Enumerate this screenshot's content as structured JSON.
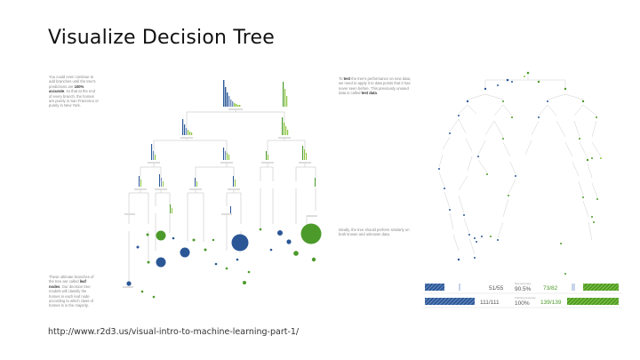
{
  "slide": {
    "title": "Visualize Decision Tree",
    "url": "http://www.r2d3.us/visual-intro-to-machine-learning-part-1/"
  },
  "left_panel": {
    "note_top": {
      "pre": "You could even continue to add branches until the tree's predictions are ",
      "bold": "100% accurate",
      "post": ", so that at the end of every branch, the homes are purely in San Francisco or purely in New York."
    },
    "note_bottom": {
      "pre": "These ultimate branches of the tree are called ",
      "bold": "leaf nodes",
      "post": ". Our decision tree models will classify the homes in each leaf node according to which class of homes is in the majority."
    }
  },
  "right_panel": {
    "note_top": {
      "pre": "To ",
      "bold1": "test",
      "mid": " the tree's performance on new data, we need to apply it to data points that it has never seen before. This previously unused data is called ",
      "bold2": "test data",
      "post": "."
    },
    "note_mid": "Ideally, the tree should perform similarly on both known and unknown data.",
    "stats": {
      "row1": {
        "left": "51/55",
        "center_label": "Test Accuracy",
        "center": "90.5%",
        "right": "73/82"
      },
      "row2": {
        "left": "111/111",
        "center_label": "Training Accuracy",
        "center": "100%",
        "right": "139/139"
      }
    }
  },
  "colors": {
    "blue": "#2b5797",
    "green": "#4c9a2a",
    "light_green": "#8cc63f",
    "grey_line": "#cccccc"
  }
}
